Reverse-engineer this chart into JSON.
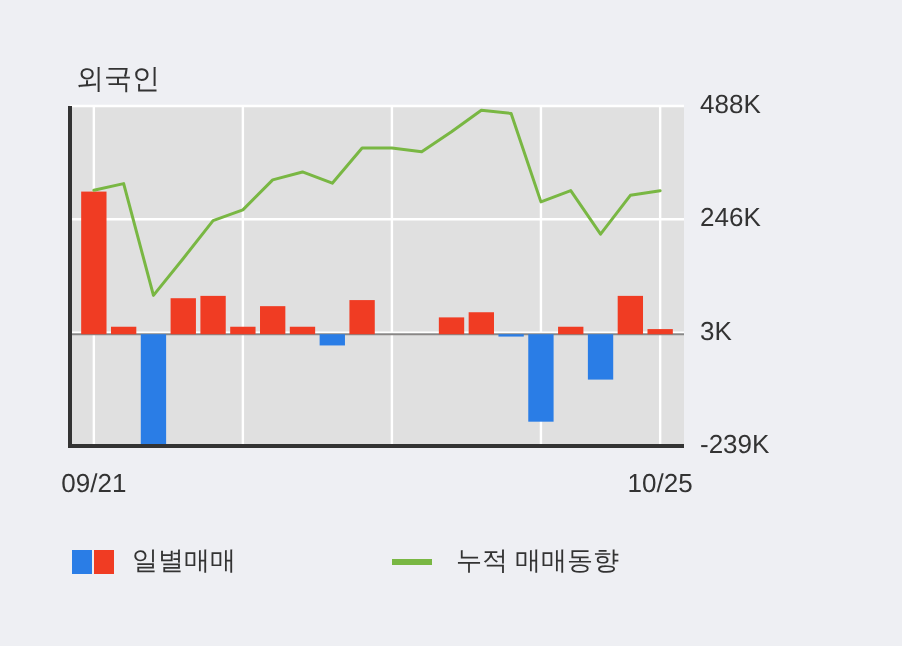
{
  "chart_data": {
    "type": "bar",
    "title": "외국인",
    "categories": [
      "09/21",
      null,
      null,
      null,
      null,
      null,
      null,
      null,
      null,
      null,
      null,
      null,
      null,
      null,
      null,
      null,
      null,
      null,
      null,
      "10/25"
    ],
    "series": [
      {
        "name": "일별매매",
        "values": [
          305,
          16,
          -239,
          77,
          82,
          16,
          60,
          16,
          -24,
          73,
          0,
          0,
          36,
          47,
          -5,
          -187,
          16,
          -97,
          82,
          11
        ],
        "colors": [
          "#f03c23",
          "#f03c23",
          "#2a7de6",
          "#f03c23",
          "#f03c23",
          "#f03c23",
          "#f03c23",
          "#f03c23",
          "#2a7de6",
          "#f03c23",
          "#f03c23",
          "#f03c23",
          "#f03c23",
          "#f03c23",
          "#2a7de6",
          "#2a7de6",
          "#f03c23",
          "#2a7de6",
          "#f03c23",
          "#f03c23"
        ]
      },
      {
        "name": "누적 매매동향",
        "type": "line",
        "color": "#79b743",
        "values": [
          308,
          322,
          83,
          162,
          243,
          266,
          330,
          347,
          323,
          398,
          398,
          390,
          433,
          479,
          472,
          283,
          307,
          214,
          297,
          307
        ]
      }
    ],
    "ylim": [
      -239,
      488
    ],
    "yticks": [
      {
        "value": 488,
        "label": "488K"
      },
      {
        "value": 246,
        "label": "246K"
      },
      {
        "value": 3,
        "label": "3K"
      },
      {
        "value": -239,
        "label": "-239K"
      }
    ],
    "grid": true,
    "legend": "bottom"
  }
}
